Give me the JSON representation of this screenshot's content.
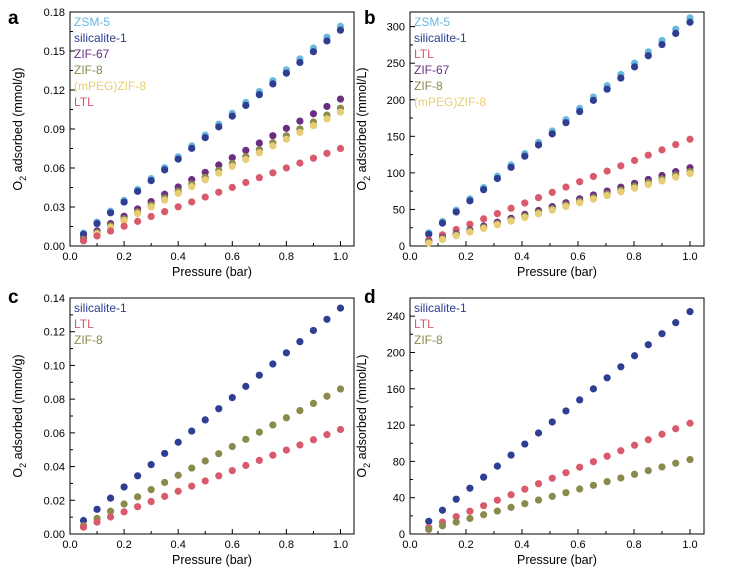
{
  "colors": {
    "ZSM-5": "#6ab8dd",
    "silicalite-1": "#2e3e92",
    "ZIF-67": "#6a2e83",
    "ZIF-8": "#8a8a4c",
    "(mPEG)ZIF-8": "#e7cd75",
    "LTL": "#d95a6c"
  },
  "chart_data": [
    {
      "panel": "a",
      "type": "scatter",
      "xlabel": "Pressure (bar)",
      "ylabel_main": "O",
      "ylabel_sub": "2",
      "ylabel_rest": " adsorbed (mmol/g)",
      "xlim": [
        0.0,
        1.05
      ],
      "ylim": [
        0.0,
        0.18
      ],
      "xticks": [
        "0.0",
        "0.2",
        "0.4",
        "0.6",
        "0.8",
        "1.0"
      ],
      "xtick_values": [
        0.0,
        0.2,
        0.4,
        0.6,
        0.8,
        1.0
      ],
      "yticks": [
        "0.00",
        "0.03",
        "0.06",
        "0.09",
        "0.12",
        "0.15",
        "0.18"
      ],
      "ytick_values": [
        0.0,
        0.03,
        0.06,
        0.09,
        0.12,
        0.15,
        0.18
      ],
      "x": [
        0.05,
        0.1,
        0.15,
        0.2,
        0.25,
        0.3,
        0.35,
        0.4,
        0.45,
        0.5,
        0.55,
        0.6,
        0.65,
        0.7,
        0.75,
        0.8,
        0.85,
        0.9,
        0.95,
        1.0
      ],
      "series": [
        {
          "name": "ZSM-5",
          "start": 0.01,
          "end": 0.169
        },
        {
          "name": "silicalite-1",
          "start": 0.009,
          "end": 0.166
        },
        {
          "name": "ZIF-67",
          "start": 0.006,
          "end": 0.113
        },
        {
          "name": "ZIF-8",
          "start": 0.005,
          "end": 0.106
        },
        {
          "name": "(mPEG)ZIF-8",
          "start": 0.004,
          "end": 0.103
        },
        {
          "name": "LTL",
          "start": 0.004,
          "end": 0.075
        }
      ],
      "legend": [
        {
          "label": "ZSM-5",
          "series": "ZSM-5"
        },
        {
          "label": "silicalite-1",
          "series": "silicalite-1"
        },
        {
          "label": "ZIF-67",
          "series": "ZIF-67"
        },
        {
          "label": "ZIF-8",
          "series": "ZIF-8"
        },
        {
          "label": "(mPEG)ZIF-8",
          "series": "(mPEG)ZIF-8"
        },
        {
          "label": "LTL",
          "series": "LTL"
        }
      ],
      "legend_position": "top-left"
    },
    {
      "panel": "b",
      "type": "scatter",
      "xlabel": "Pressure (bar)",
      "ylabel_main": "O",
      "ylabel_sub": "2",
      "ylabel_rest": " adsorbed (mmol/L)",
      "xlim": [
        0.0,
        1.05
      ],
      "ylim": [
        0,
        320
      ],
      "xticks": [
        "0.0",
        "0.2",
        "0.4",
        "0.6",
        "0.8",
        "1.0"
      ],
      "xtick_values": [
        0.0,
        0.2,
        0.4,
        0.6,
        0.8,
        1.0
      ],
      "yticks": [
        "0",
        "50",
        "100",
        "150",
        "200",
        "250",
        "300"
      ],
      "ytick_values": [
        0,
        50,
        100,
        150,
        200,
        250,
        300
      ],
      "x": [
        0.067,
        0.116,
        0.165,
        0.214,
        0.263,
        0.312,
        0.361,
        0.41,
        0.459,
        0.508,
        0.557,
        0.606,
        0.655,
        0.704,
        0.753,
        0.802,
        0.851,
        0.9,
        0.949,
        1.0
      ],
      "series": [
        {
          "name": "ZSM-5",
          "start": 18,
          "end": 312
        },
        {
          "name": "silicalite-1",
          "start": 16,
          "end": 306
        },
        {
          "name": "LTL",
          "start": 8,
          "end": 146
        },
        {
          "name": "ZIF-67",
          "start": 6,
          "end": 107
        },
        {
          "name": "ZIF-8",
          "start": 5,
          "end": 102
        },
        {
          "name": "(mPEG)ZIF-8",
          "start": 4,
          "end": 99
        }
      ],
      "legend": [
        {
          "label": "ZSM-5",
          "series": "ZSM-5"
        },
        {
          "label": "silicalite-1",
          "series": "silicalite-1"
        },
        {
          "label": "LTL",
          "series": "LTL"
        },
        {
          "label": "ZIF-67",
          "series": "ZIF-67"
        },
        {
          "label": "ZIF-8",
          "series": "ZIF-8"
        },
        {
          "label": "(mPEG)ZIF-8",
          "series": "(mPEG)ZIF-8"
        }
      ],
      "legend_position": "top-left"
    },
    {
      "panel": "c",
      "type": "scatter",
      "xlabel": "Pressure (bar)",
      "ylabel_main": "O",
      "ylabel_sub": "2",
      "ylabel_rest": " adsorbed (mmol/g)",
      "xlim": [
        0.0,
        1.05
      ],
      "ylim": [
        0.0,
        0.14
      ],
      "xticks": [
        "0.0",
        "0.2",
        "0.4",
        "0.6",
        "0.8",
        "1.0"
      ],
      "xtick_values": [
        0.0,
        0.2,
        0.4,
        0.6,
        0.8,
        1.0
      ],
      "yticks": [
        "0.00",
        "0.02",
        "0.04",
        "0.06",
        "0.08",
        "0.10",
        "0.12",
        "0.14"
      ],
      "ytick_values": [
        0.0,
        0.02,
        0.04,
        0.06,
        0.08,
        0.1,
        0.12,
        0.14
      ],
      "x": [
        0.05,
        0.1,
        0.15,
        0.2,
        0.25,
        0.3,
        0.35,
        0.4,
        0.45,
        0.5,
        0.55,
        0.6,
        0.65,
        0.7,
        0.75,
        0.8,
        0.85,
        0.9,
        0.95,
        1.0
      ],
      "series": [
        {
          "name": "silicalite-1",
          "start": 0.008,
          "end": 0.134
        },
        {
          "name": "ZIF-8",
          "start": 0.005,
          "end": 0.086
        },
        {
          "name": "LTL",
          "start": 0.004,
          "end": 0.062
        }
      ],
      "legend": [
        {
          "label": "silicalite-1",
          "series": "silicalite-1"
        },
        {
          "label": "LTL",
          "series": "LTL"
        },
        {
          "label": "ZIF-8",
          "series": "ZIF-8"
        }
      ],
      "legend_position": "top-left"
    },
    {
      "panel": "d",
      "type": "scatter",
      "xlabel": "Pressure (bar)",
      "ylabel_main": "O",
      "ylabel_sub": "2",
      "ylabel_rest": " adsorbed (mmol/L)",
      "xlim": [
        0.0,
        1.05
      ],
      "ylim": [
        0,
        260
      ],
      "xticks": [
        "0.0",
        "0.2",
        "0.4",
        "0.6",
        "0.8",
        "1.0"
      ],
      "xtick_values": [
        0.0,
        0.2,
        0.4,
        0.6,
        0.8,
        1.0
      ],
      "yticks": [
        "0",
        "40",
        "80",
        "120",
        "160",
        "200",
        "240"
      ],
      "ytick_values": [
        0,
        40,
        80,
        120,
        160,
        200,
        240
      ],
      "x": [
        0.067,
        0.116,
        0.165,
        0.214,
        0.263,
        0.312,
        0.361,
        0.41,
        0.459,
        0.508,
        0.557,
        0.606,
        0.655,
        0.704,
        0.753,
        0.802,
        0.851,
        0.9,
        0.949,
        1.0
      ],
      "series": [
        {
          "name": "silicalite-1",
          "start": 14,
          "end": 245
        },
        {
          "name": "LTL",
          "start": 7,
          "end": 122
        },
        {
          "name": "ZIF-8",
          "start": 5,
          "end": 82
        }
      ],
      "legend": [
        {
          "label": "silicalite-1",
          "series": "silicalite-1"
        },
        {
          "label": "LTL",
          "series": "LTL"
        },
        {
          "label": "ZIF-8",
          "series": "ZIF-8"
        }
      ],
      "legend_position": "top-left"
    }
  ]
}
